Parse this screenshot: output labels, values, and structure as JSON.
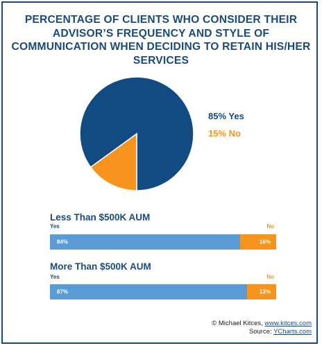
{
  "chart_data": {
    "type": "pie",
    "title": "PERCENTAGE OF CLIENTS WHO CONSIDER THEIR ADVISOR’S FREQUENCY AND STYLE OF COMMUNICATION WHEN DECIDING TO RETAIN HIS/HER SERVICES",
    "slices": [
      {
        "label": "85% Yes",
        "value": 85,
        "color": "#124b82"
      },
      {
        "label": "15% No",
        "value": 15,
        "color": "#f7941d"
      }
    ],
    "legend_position": "right",
    "groups": [
      {
        "title": "Less Than $500K AUM",
        "yes_label": "Yes",
        "no_label": "No",
        "yes_value": 84,
        "no_value": 16,
        "yes_text": "84%",
        "no_text": "16%",
        "yes_color": "#5b9bd5",
        "no_color": "#f7941d"
      },
      {
        "title": "More Than $500K AUM",
        "yes_label": "Yes",
        "no_label": "No",
        "yes_value": 87,
        "no_value": 13,
        "yes_text": "87%",
        "no_text": "13%",
        "yes_color": "#5b9bd5",
        "no_color": "#f7941d"
      }
    ]
  },
  "footer": {
    "copyright_prefix": "© Michael Kitces, ",
    "site_link": "www.kitces.com",
    "source_prefix": "Source: ",
    "source_link": "YCharts.com"
  }
}
